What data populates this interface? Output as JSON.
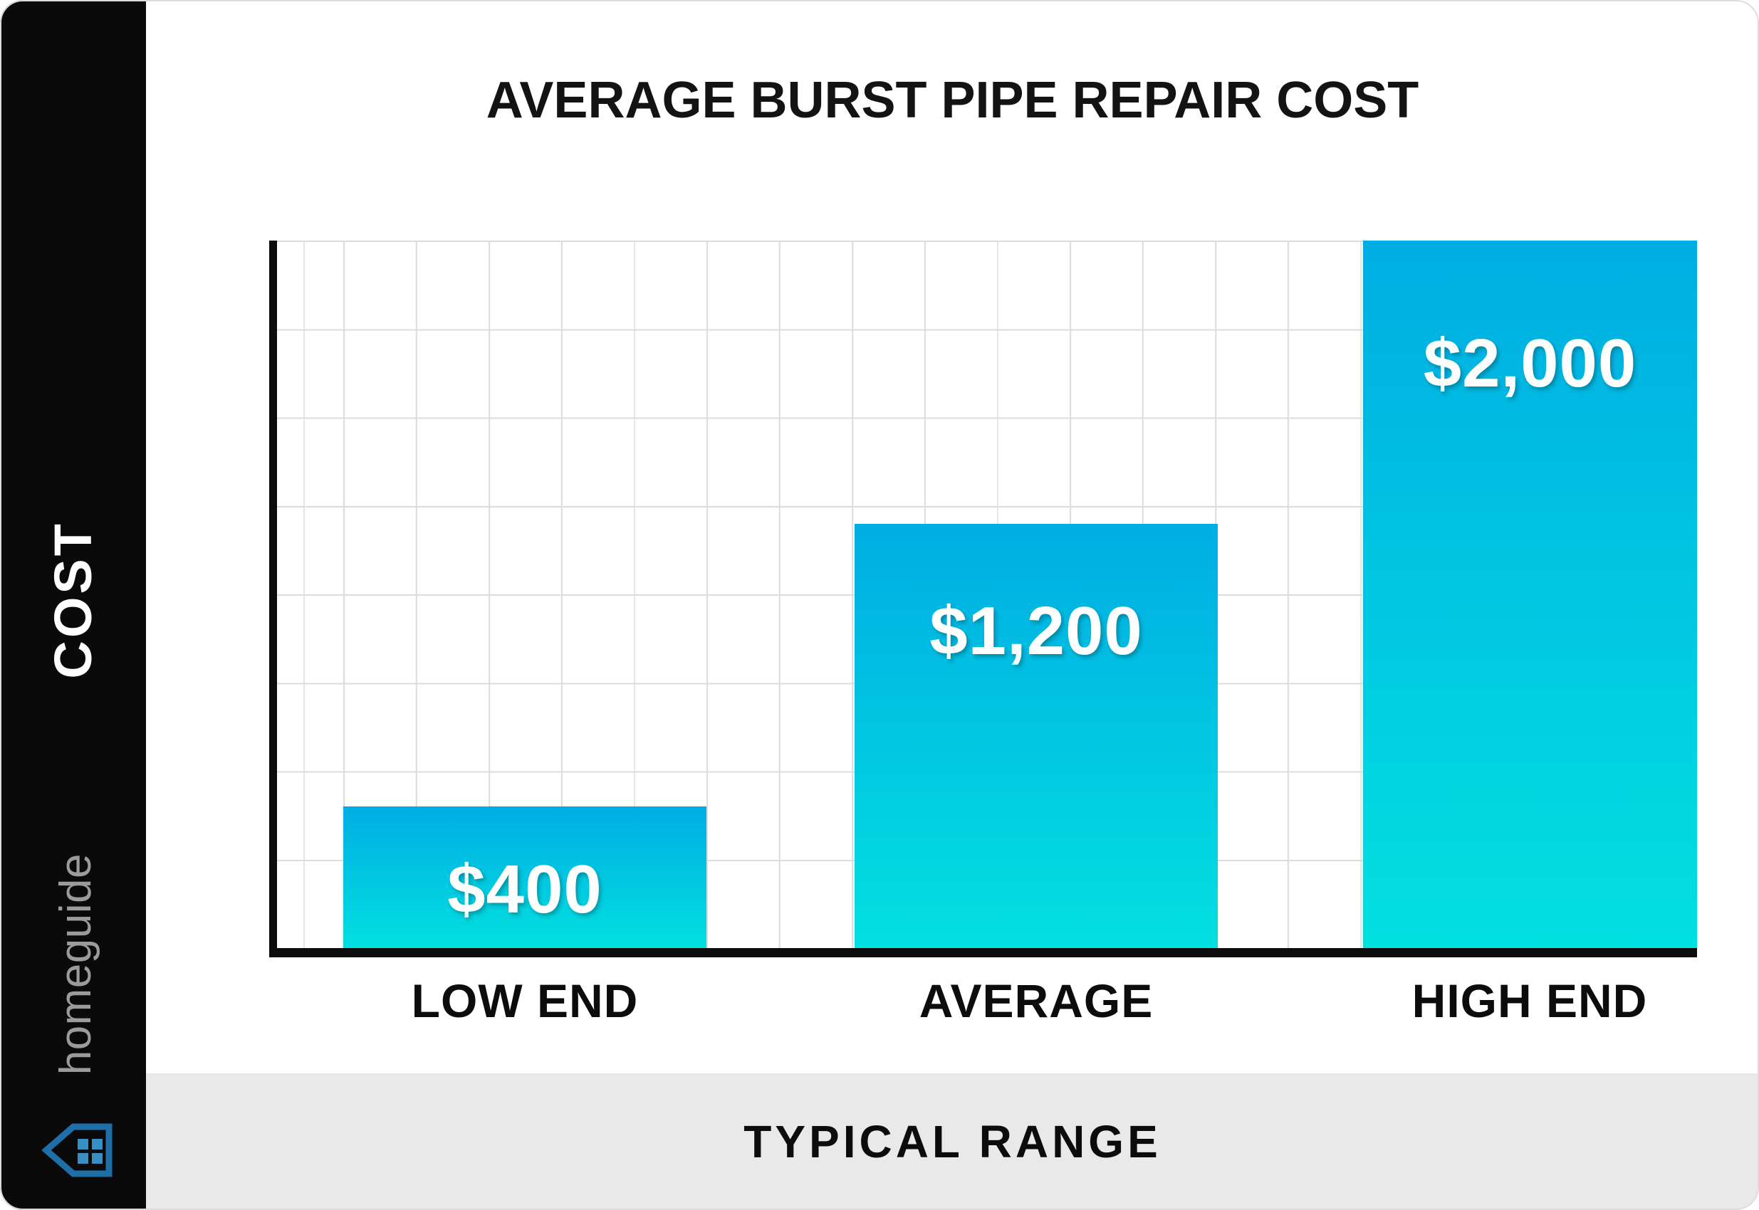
{
  "sidebar": {
    "brand_text": "homeguide",
    "brand_text_color": "#9b9b9b",
    "background_color": "#0a0a0a",
    "house_icon_outline_color": "#1e6fa8",
    "house_icon_window_color": "#3790c4"
  },
  "chart_data": {
    "type": "bar",
    "title": "AVERAGE BURST PIPE REPAIR COST",
    "categories": [
      "LOW END",
      "AVERAGE",
      "HIGH END"
    ],
    "values": [
      400,
      1200,
      2000
    ],
    "value_labels": [
      "$400",
      "$1,200",
      "$2,000"
    ],
    "xlabel": "TYPICAL RANGE",
    "ylabel": "COST",
    "ylim": [
      0,
      2000
    ],
    "y_gridline_step": 250,
    "grid": true,
    "legend": false,
    "bar_gradient_top": "#00ADE3",
    "bar_gradient_bottom": "#02E0E0",
    "gridline_color": "#dcdcdc",
    "axis_color": "#0d0d0d",
    "value_label_color": "#ffffff"
  }
}
